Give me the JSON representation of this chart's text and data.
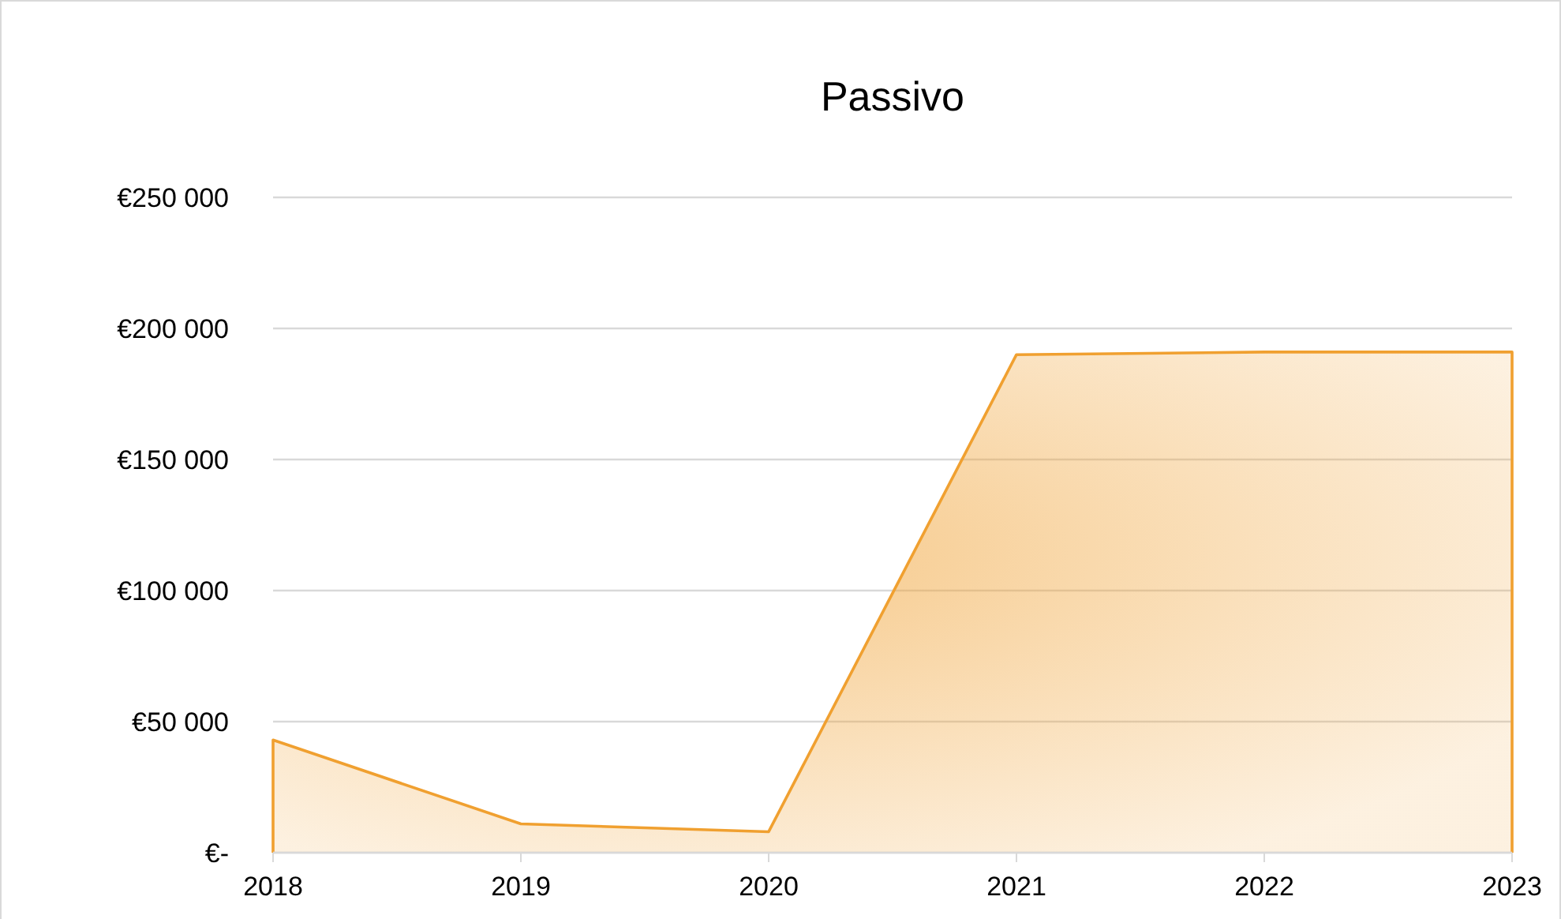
{
  "chart_data": {
    "type": "area",
    "title": "Passivo",
    "categories": [
      "2018",
      "2019",
      "2020",
      "2021",
      "2022",
      "2023"
    ],
    "series": [
      {
        "color": "#f0a030",
        "values": [
          43000,
          11000,
          8000,
          190000,
          191000,
          191000
        ]
      }
    ],
    "ylim": [
      0,
      250000
    ],
    "yticks": [
      {
        "value": 0,
        "label": "€-"
      },
      {
        "value": 50000,
        "label": "€50 000"
      },
      {
        "value": 100000,
        "label": "€100 000"
      },
      {
        "value": 150000,
        "label": "€150 000"
      },
      {
        "value": 200000,
        "label": "€200 000"
      },
      {
        "value": 250000,
        "label": "€250 000"
      }
    ],
    "grid": "y"
  }
}
